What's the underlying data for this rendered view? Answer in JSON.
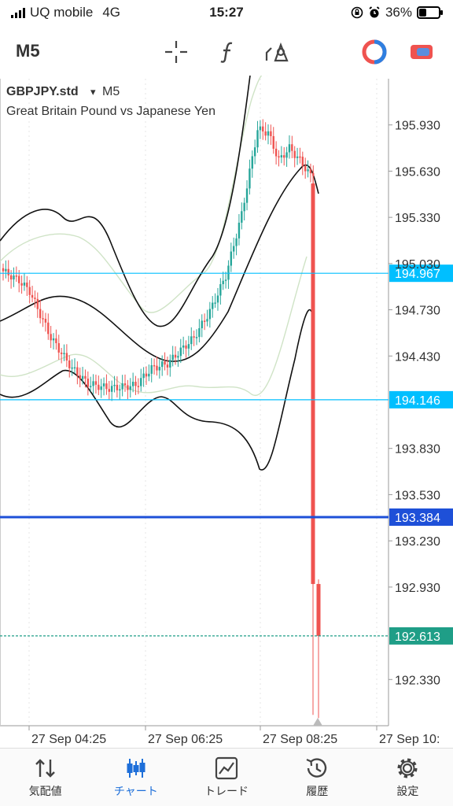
{
  "status_bar": {
    "carrier": "UQ mobile",
    "network": "4G",
    "time": "15:27",
    "battery": "36%",
    "battery_level": 0.36
  },
  "toolbar": {
    "timeframe": "M5",
    "icons": [
      "crosshair-icon",
      "function-icon",
      "objects-icon",
      "trading-icon",
      "brand-icon"
    ]
  },
  "chart": {
    "symbol": "GBPJPY.std",
    "period": "M5",
    "dropdown_glyph": "▾",
    "description": "Great Britain Pound vs Japanese Yen",
    "price_axis": [
      "195.930",
      "195.630",
      "195.330",
      "195.030",
      "194.730",
      "194.430",
      "193.830",
      "193.530",
      "193.230",
      "192.930",
      "192.330"
    ],
    "price_range": [
      192.03,
      196.23
    ],
    "time_axis": [
      "27 Sep 04:25",
      "27 Sep 06:25",
      "27 Sep 08:25",
      "27 Sep 10:"
    ],
    "levels": [
      {
        "label": "194.967",
        "price": 194.967,
        "color": "#00bfff",
        "style": "solid"
      },
      {
        "label": "194.146",
        "price": 194.146,
        "color": "#00bfff",
        "style": "solid"
      },
      {
        "label": "193.384",
        "price": 193.384,
        "color": "#1e50d8",
        "style": "solid-thick"
      },
      {
        "label": "192.613",
        "price": 192.613,
        "color": "#1f9e87",
        "style": "dashed"
      }
    ],
    "colors": {
      "bull": "#26a69a",
      "bear": "#ef5350",
      "bands_outer": "#111111",
      "bands_inner": "#cfe3c6"
    }
  },
  "nav": {
    "items": [
      {
        "label": "気配値",
        "icon": "quotes-icon"
      },
      {
        "label": "チャート",
        "icon": "chart-icon",
        "active": true
      },
      {
        "label": "トレード",
        "icon": "trade-icon"
      },
      {
        "label": "履歴",
        "icon": "history-icon"
      },
      {
        "label": "設定",
        "icon": "settings-icon"
      }
    ]
  }
}
